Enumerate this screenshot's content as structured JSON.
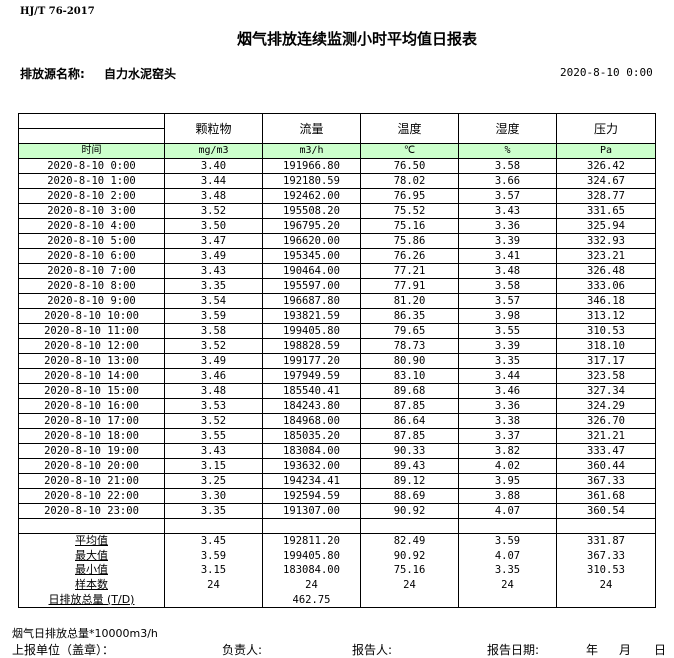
{
  "standard": "HJ/T  76-2017",
  "title": "烟气排放连续监测小时平均值日报表",
  "source_label": "排放源名称:",
  "source_name": "自力水泥窑头",
  "report_datetime": "2020-8-10 0:00",
  "header": {
    "time": "时间",
    "columns": [
      "颗粒物",
      "流量",
      "温度",
      "湿度",
      "压力"
    ],
    "units": [
      "mg/m3",
      "m3/h",
      "℃",
      "%",
      "Pa"
    ]
  },
  "rows": [
    [
      "2020-8-10 0:00",
      "3.40",
      "191966.80",
      "76.50",
      "3.58",
      "326.42"
    ],
    [
      "2020-8-10 1:00",
      "3.44",
      "192180.59",
      "78.02",
      "3.66",
      "324.67"
    ],
    [
      "2020-8-10 2:00",
      "3.48",
      "192462.00",
      "76.95",
      "3.57",
      "328.77"
    ],
    [
      "2020-8-10 3:00",
      "3.52",
      "195508.20",
      "75.52",
      "3.43",
      "331.65"
    ],
    [
      "2020-8-10 4:00",
      "3.50",
      "196795.20",
      "75.16",
      "3.36",
      "325.94"
    ],
    [
      "2020-8-10 5:00",
      "3.47",
      "196620.00",
      "75.86",
      "3.39",
      "332.93"
    ],
    [
      "2020-8-10 6:00",
      "3.49",
      "195345.00",
      "76.26",
      "3.41",
      "323.21"
    ],
    [
      "2020-8-10 7:00",
      "3.43",
      "190464.00",
      "77.21",
      "3.48",
      "326.48"
    ],
    [
      "2020-8-10 8:00",
      "3.35",
      "195597.00",
      "77.91",
      "3.58",
      "333.06"
    ],
    [
      "2020-8-10 9:00",
      "3.54",
      "196687.80",
      "81.20",
      "3.57",
      "346.18"
    ],
    [
      "2020-8-10 10:00",
      "3.59",
      "193821.59",
      "86.35",
      "3.98",
      "313.12"
    ],
    [
      "2020-8-10 11:00",
      "3.58",
      "199405.80",
      "79.65",
      "3.55",
      "310.53"
    ],
    [
      "2020-8-10 12:00",
      "3.52",
      "198828.59",
      "78.73",
      "3.39",
      "318.10"
    ],
    [
      "2020-8-10 13:00",
      "3.49",
      "199177.20",
      "80.90",
      "3.35",
      "317.17"
    ],
    [
      "2020-8-10 14:00",
      "3.46",
      "197949.59",
      "83.10",
      "3.44",
      "323.58"
    ],
    [
      "2020-8-10 15:00",
      "3.48",
      "185540.41",
      "89.68",
      "3.46",
      "327.34"
    ],
    [
      "2020-8-10 16:00",
      "3.53",
      "184243.80",
      "87.85",
      "3.36",
      "324.29"
    ],
    [
      "2020-8-10 17:00",
      "3.52",
      "184968.00",
      "86.64",
      "3.38",
      "326.70"
    ],
    [
      "2020-8-10 18:00",
      "3.55",
      "185035.20",
      "87.85",
      "3.37",
      "321.21"
    ],
    [
      "2020-8-10 19:00",
      "3.43",
      "183084.00",
      "90.33",
      "3.82",
      "333.47"
    ],
    [
      "2020-8-10 20:00",
      "3.15",
      "193632.00",
      "89.43",
      "4.02",
      "360.44"
    ],
    [
      "2020-8-10 21:00",
      "3.25",
      "194234.41",
      "89.12",
      "3.95",
      "367.33"
    ],
    [
      "2020-8-10 22:00",
      "3.30",
      "192594.59",
      "88.69",
      "3.88",
      "361.68"
    ],
    [
      "2020-8-10 23:00",
      "3.35",
      "191307.00",
      "90.92",
      "4.07",
      "360.54"
    ]
  ],
  "summary": [
    [
      "平均值",
      "3.45",
      "192811.20",
      "82.49",
      "3.59",
      "331.87"
    ],
    [
      "最大值",
      "3.59",
      "199405.80",
      "90.92",
      "4.07",
      "367.33"
    ],
    [
      "最小值",
      "3.15",
      "183084.00",
      "75.16",
      "3.35",
      "310.53"
    ],
    [
      "样本数",
      "24",
      "24",
      "24",
      "24",
      "24"
    ],
    [
      "日排放总量 (T/D)",
      "",
      "462.75",
      "",
      "",
      ""
    ]
  ],
  "footer": {
    "note": "烟气日排放总量*10000m3/h",
    "unit": "上报单位（盖章）：",
    "responsible": "负责人:",
    "reporter": "报告人:",
    "report_date": "报告日期:",
    "year": "年",
    "month": "月",
    "day": "日"
  }
}
